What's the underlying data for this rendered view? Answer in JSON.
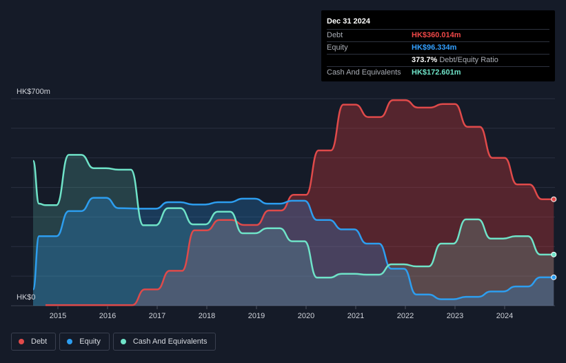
{
  "chart_data": {
    "type": "area",
    "y_label_top": "HK$700m",
    "y_label_bottom": "HK$0",
    "ylim": [
      0,
      700
    ],
    "x_tick_labels": [
      "2015",
      "2016",
      "2017",
      "2018",
      "2019",
      "2020",
      "2021",
      "2022",
      "2023",
      "2024"
    ],
    "grid": true,
    "legend_position": "bottom-left",
    "series": [
      {
        "name": "Debt",
        "color": "#e04a4a",
        "points": [
          [
            2014.75,
            2
          ],
          [
            2016.5,
            2
          ],
          [
            2016.75,
            55
          ],
          [
            2017.0,
            55
          ],
          [
            2017.25,
            118
          ],
          [
            2017.5,
            118
          ],
          [
            2017.75,
            255
          ],
          [
            2018.0,
            255
          ],
          [
            2018.25,
            290
          ],
          [
            2018.5,
            290
          ],
          [
            2018.75,
            273
          ],
          [
            2019.0,
            273
          ],
          [
            2019.25,
            322
          ],
          [
            2019.5,
            322
          ],
          [
            2019.75,
            375
          ],
          [
            2020.0,
            375
          ],
          [
            2020.25,
            525
          ],
          [
            2020.5,
            525
          ],
          [
            2020.75,
            680
          ],
          [
            2021.0,
            680
          ],
          [
            2021.25,
            638
          ],
          [
            2021.5,
            638
          ],
          [
            2021.75,
            695
          ],
          [
            2022.0,
            695
          ],
          [
            2022.25,
            670
          ],
          [
            2022.5,
            670
          ],
          [
            2022.75,
            682
          ],
          [
            2023.0,
            682
          ],
          [
            2023.25,
            605
          ],
          [
            2023.5,
            605
          ],
          [
            2023.75,
            500
          ],
          [
            2024.0,
            500
          ],
          [
            2024.25,
            410
          ],
          [
            2024.5,
            410
          ],
          [
            2024.75,
            360
          ],
          [
            2024.99,
            360
          ]
        ]
      },
      {
        "name": "Equity",
        "color": "#2d9ef0",
        "points": [
          [
            2014.5,
            55
          ],
          [
            2014.62,
            235
          ],
          [
            2014.75,
            235
          ],
          [
            2014.97,
            235
          ],
          [
            2015.22,
            320
          ],
          [
            2015.47,
            320
          ],
          [
            2015.72,
            365
          ],
          [
            2015.97,
            365
          ],
          [
            2016.22,
            330
          ],
          [
            2016.72,
            328
          ],
          [
            2016.97,
            328
          ],
          [
            2017.22,
            350
          ],
          [
            2017.47,
            350
          ],
          [
            2017.72,
            342
          ],
          [
            2017.97,
            342
          ],
          [
            2018.22,
            350
          ],
          [
            2018.47,
            350
          ],
          [
            2018.72,
            362
          ],
          [
            2018.97,
            362
          ],
          [
            2019.22,
            345
          ],
          [
            2019.47,
            345
          ],
          [
            2019.72,
            355
          ],
          [
            2019.97,
            355
          ],
          [
            2020.22,
            290
          ],
          [
            2020.47,
            290
          ],
          [
            2020.72,
            258
          ],
          [
            2020.97,
            258
          ],
          [
            2021.22,
            210
          ],
          [
            2021.47,
            210
          ],
          [
            2021.72,
            125
          ],
          [
            2021.97,
            125
          ],
          [
            2022.22,
            38
          ],
          [
            2022.47,
            38
          ],
          [
            2022.72,
            22
          ],
          [
            2022.97,
            22
          ],
          [
            2023.22,
            30
          ],
          [
            2023.47,
            30
          ],
          [
            2023.72,
            48
          ],
          [
            2023.97,
            48
          ],
          [
            2024.22,
            65
          ],
          [
            2024.47,
            65
          ],
          [
            2024.72,
            96
          ],
          [
            2024.99,
            96
          ]
        ]
      },
      {
        "name": "Cash And Equivalents",
        "color": "#6fe3c8",
        "points": [
          [
            2014.5,
            490
          ],
          [
            2014.62,
            345
          ],
          [
            2014.75,
            340
          ],
          [
            2014.97,
            340
          ],
          [
            2015.22,
            510
          ],
          [
            2015.47,
            510
          ],
          [
            2015.72,
            465
          ],
          [
            2015.97,
            465
          ],
          [
            2016.22,
            460
          ],
          [
            2016.47,
            460
          ],
          [
            2016.72,
            272
          ],
          [
            2016.97,
            272
          ],
          [
            2017.22,
            330
          ],
          [
            2017.47,
            330
          ],
          [
            2017.72,
            275
          ],
          [
            2017.97,
            275
          ],
          [
            2018.22,
            318
          ],
          [
            2018.47,
            318
          ],
          [
            2018.72,
            245
          ],
          [
            2018.97,
            245
          ],
          [
            2019.22,
            262
          ],
          [
            2019.47,
            262
          ],
          [
            2019.72,
            218
          ],
          [
            2019.97,
            218
          ],
          [
            2020.22,
            95
          ],
          [
            2020.47,
            95
          ],
          [
            2020.72,
            108
          ],
          [
            2020.97,
            108
          ],
          [
            2021.22,
            105
          ],
          [
            2021.47,
            105
          ],
          [
            2021.72,
            140
          ],
          [
            2021.97,
            140
          ],
          [
            2022.22,
            133
          ],
          [
            2022.47,
            133
          ],
          [
            2022.72,
            210
          ],
          [
            2022.97,
            210
          ],
          [
            2023.22,
            292
          ],
          [
            2023.47,
            292
          ],
          [
            2023.72,
            227
          ],
          [
            2023.97,
            227
          ],
          [
            2024.22,
            235
          ],
          [
            2024.47,
            235
          ],
          [
            2024.72,
            173
          ],
          [
            2024.99,
            173
          ]
        ]
      }
    ]
  },
  "tooltip": {
    "date": "Dec 31 2024",
    "rows": [
      {
        "label": "Debt",
        "value": "HK$360.014m",
        "color": "#f04848"
      },
      {
        "label": "Equity",
        "value": "HK$96.334m",
        "color": "#33a0ff"
      },
      {
        "label": "",
        "value": "373.7%",
        "suffix": "Debt/Equity Ratio",
        "color": "#ffffff"
      },
      {
        "label": "Cash And Equivalents",
        "value": "HK$172.601m",
        "color": "#6fe3c8"
      }
    ]
  },
  "legend": [
    {
      "label": "Debt",
      "color": "#e04a4a"
    },
    {
      "label": "Equity",
      "color": "#2d9ef0"
    },
    {
      "label": "Cash And Equivalents",
      "color": "#6fe3c8"
    }
  ]
}
